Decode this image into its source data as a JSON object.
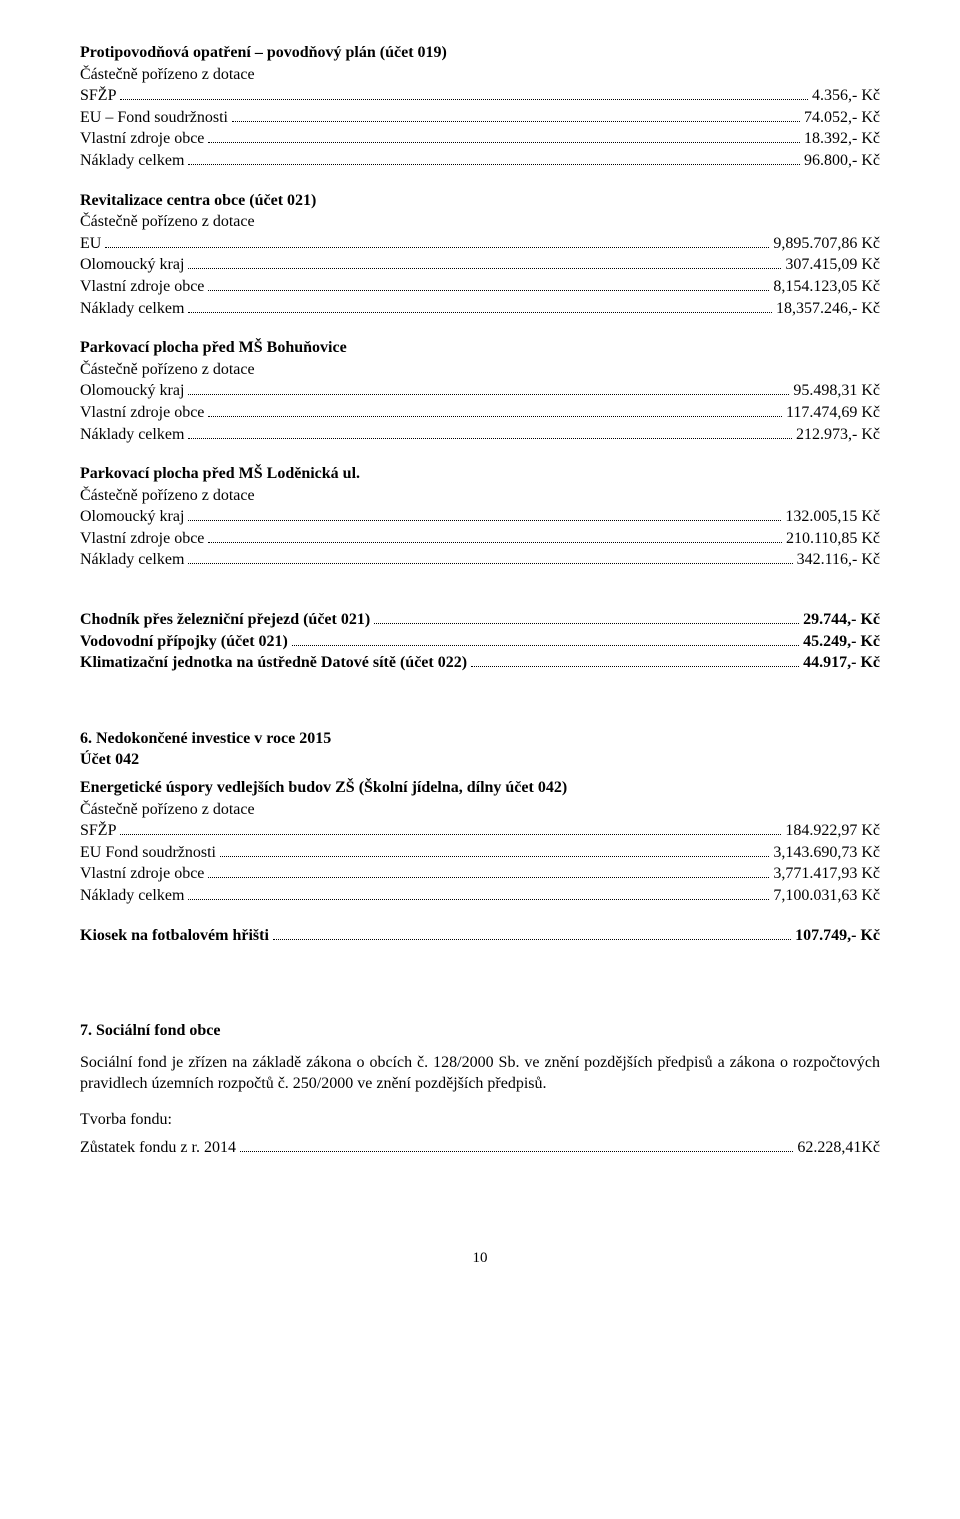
{
  "s1": {
    "title": "Protipovodňová opatření – povodňový plán (účet 019)",
    "subtitle": "Částečně pořízeno z dotace",
    "rows": [
      {
        "label": "SFŽP",
        "value": "4.356,- Kč"
      },
      {
        "label": "EU – Fond soudržnosti",
        "value": "74.052,- Kč"
      },
      {
        "label": "Vlastní zdroje obce",
        "value": "18.392,- Kč"
      },
      {
        "label": "Náklady celkem",
        "value": "96.800,- Kč"
      }
    ]
  },
  "s2": {
    "title": "Revitalizace centra obce (účet 021)",
    "subtitle": "Částečně pořízeno z dotace",
    "rows": [
      {
        "label": "EU",
        "value": "9,895.707,86 Kč"
      },
      {
        "label": "Olomoucký kraj",
        "value": "307.415,09 Kč"
      },
      {
        "label": "Vlastní zdroje obce",
        "value": "8,154.123,05 Kč"
      },
      {
        "label": "Náklady celkem",
        "value": "18,357.246,- Kč"
      }
    ]
  },
  "s3": {
    "title": "Parkovací plocha před MŠ Bohuňovice",
    "subtitle": "Částečně pořízeno z dotace",
    "rows": [
      {
        "label": "Olomoucký kraj",
        "value": "95.498,31 Kč"
      },
      {
        "label": "Vlastní zdroje obce",
        "value": "117.474,69 Kč"
      },
      {
        "label": "Náklady celkem",
        "value": "212.973,- Kč"
      }
    ]
  },
  "s4": {
    "title": "Parkovací plocha před MŠ Loděnická ul.",
    "subtitle": "Částečně pořízeno z dotace",
    "rows": [
      {
        "label": "Olomoucký kraj",
        "value": "132.005,15 Kč"
      },
      {
        "label": "Vlastní zdroje obce",
        "value": "210.110,85 Kč"
      },
      {
        "label": "Náklady celkem",
        "value": "342.116,- Kč"
      }
    ]
  },
  "s5": {
    "rows": [
      {
        "label": "Chodník přes železniční přejezd (účet 021)",
        "value": "29.744,- Kč",
        "bold": true
      },
      {
        "label": "Vodovodní přípojky (účet 021)",
        "value": "45.249,- Kč",
        "bold": true
      },
      {
        "label": "Klimatizační jednotka na ústředně Datové sítě (účet 022)",
        "value": "44.917,- Kč",
        "bold": true
      }
    ]
  },
  "s6": {
    "heading": "6. Nedokončené investice v roce 2015",
    "sub": "Účet 042",
    "title": "Energetické úspory vedlejších budov ZŠ (Školní jídelna, dílny účet 042)",
    "subtitle": "Částečně pořízeno z dotace",
    "rows": [
      {
        "label": "SFŽP",
        "value": "184.922,97 Kč"
      },
      {
        "label": "EU Fond soudržnosti",
        "value": "3,143.690,73 Kč"
      },
      {
        "label": "Vlastní zdroje obce",
        "value": "3,771.417,93 Kč"
      },
      {
        "label": "Náklady celkem",
        "value": "7,100.031,63 Kč"
      }
    ]
  },
  "s7": {
    "rows": [
      {
        "label": "Kiosek na fotbalovém hřišti",
        "value": "107.749,- Kč",
        "bold": true
      }
    ]
  },
  "s8": {
    "heading": "7. Sociální fond obce",
    "para": "Sociální fond je zřízen na základě zákona o obcích č. 128/2000 Sb. ve znění pozdějších předpisů a zákona o rozpočtových pravidlech územních rozpočtů č. 250/2000 ve znění pozdějších předpisů.",
    "tvorba": "Tvorba fondu:",
    "rows": [
      {
        "label": "Zůstatek fondu z r. 2014",
        "value": "62.228,41Kč"
      }
    ]
  },
  "pageNumber": "10"
}
